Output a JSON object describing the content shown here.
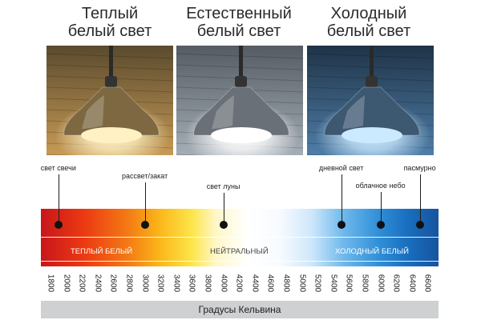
{
  "titles": [
    {
      "line1": "Теплый",
      "line2": "белый свет"
    },
    {
      "line1": "Естественный",
      "line2": "белый свет"
    },
    {
      "line1": "Холодный",
      "line2": "белый свет"
    }
  ],
  "panels": [
    {
      "bg_top": "#5a4a2e",
      "bg_bottom": "#c79a55",
      "glow": "#fff1c4",
      "lamp": "#7d6842"
    },
    {
      "bg_top": "#555b62",
      "bg_bottom": "#a5aeb6",
      "glow": "#ffffff",
      "lamp": "#6a7077"
    },
    {
      "bg_top": "#1f3347",
      "bg_bottom": "#4f7ea8",
      "glow": "#cbe9ff",
      "lamp": "#3d5871"
    }
  ],
  "markers": [
    {
      "label": "свет свечи",
      "kelvin": 1900
    },
    {
      "label": "рассвет/закат",
      "kelvin": 3000
    },
    {
      "label": "свет луны",
      "kelvin": 4000
    },
    {
      "label": "дневной свет",
      "kelvin": 5500
    },
    {
      "label": "облачное небо",
      "kelvin": 6000
    },
    {
      "label": "пасмурно",
      "kelvin": 6500
    }
  ],
  "bands": [
    {
      "label": "ТЕПЛЫЙ БЕЛЫЙ",
      "color": "#ffffff"
    },
    {
      "label": "НЕЙТРАЛЬНЫЙ",
      "color": "#444444"
    },
    {
      "label": "ХОЛОДНЫЙ БЕЛЫЙ",
      "color": "#ffffff"
    }
  ],
  "scale": {
    "ticks": [
      "1800",
      "2000",
      "2200",
      "2400",
      "2600",
      "2800",
      "3000",
      "3200",
      "3400",
      "3600",
      "3800",
      "4000",
      "4200",
      "4400",
      "4600",
      "4800",
      "5000",
      "5200",
      "5400",
      "5600",
      "5800",
      "6000",
      "6200",
      "6400",
      "6600"
    ],
    "min": 1800,
    "max": 6600,
    "caption": "Градусы Кельвина"
  }
}
